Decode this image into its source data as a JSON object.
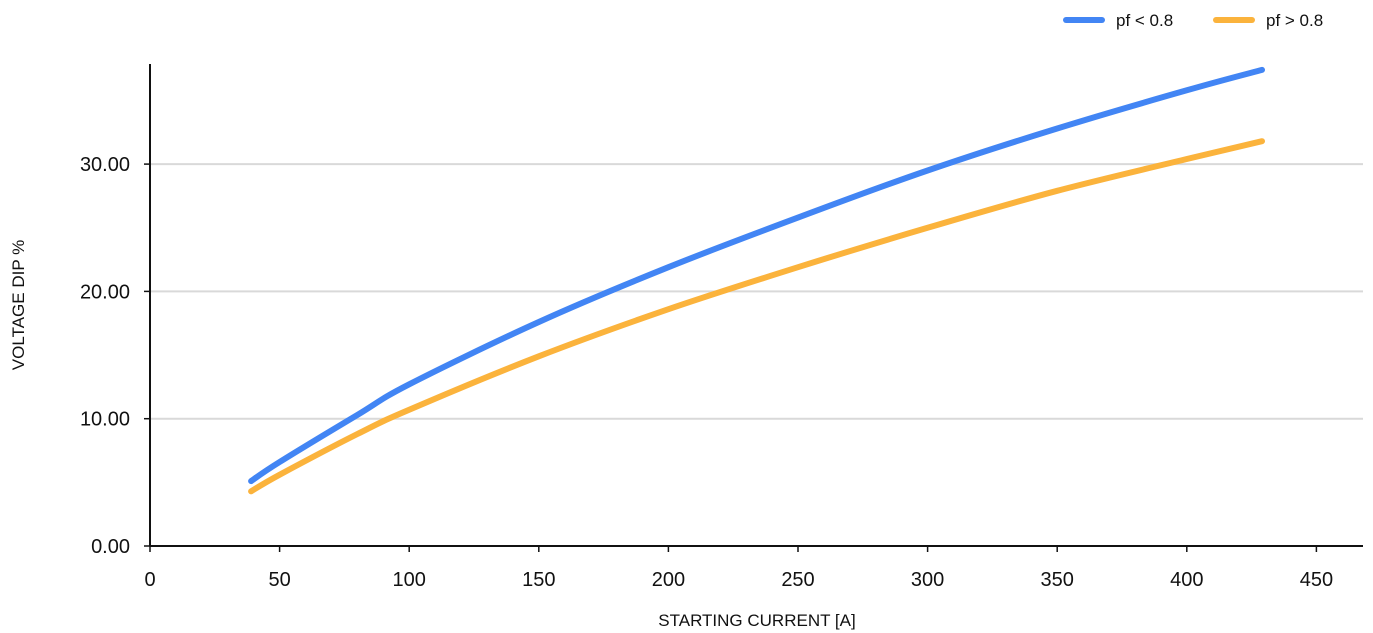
{
  "chart_data": {
    "type": "line",
    "xlabel": "STARTING CURRENT [A]",
    "ylabel": "VOLTAGE DIP %",
    "xlim": [
      0,
      470
    ],
    "ylim": [
      0,
      38
    ],
    "xticks": [
      "0",
      "50",
      "100",
      "150",
      "200",
      "250",
      "300",
      "350",
      "400",
      "450"
    ],
    "yticks": [
      "0.00",
      "10.00",
      "20.00",
      "30.00"
    ],
    "grid": true,
    "legend_position": "top-right",
    "series": [
      {
        "name": "pf < 0.8",
        "color": "#4285f4",
        "x": [
          39,
          50,
          80,
          100,
          150,
          200,
          250,
          300,
          350,
          400,
          429
        ],
        "y": [
          5.1,
          6.6,
          10.3,
          12.7,
          17.6,
          21.9,
          25.8,
          29.5,
          32.8,
          35.8,
          37.4
        ]
      },
      {
        "name": "pf > 0.8",
        "color": "#fbb33c",
        "x": [
          39,
          50,
          80,
          100,
          150,
          200,
          250,
          300,
          350,
          400,
          429
        ],
        "y": [
          4.3,
          5.6,
          8.8,
          10.7,
          14.9,
          18.6,
          21.9,
          25.0,
          27.9,
          30.4,
          31.8
        ]
      }
    ]
  }
}
